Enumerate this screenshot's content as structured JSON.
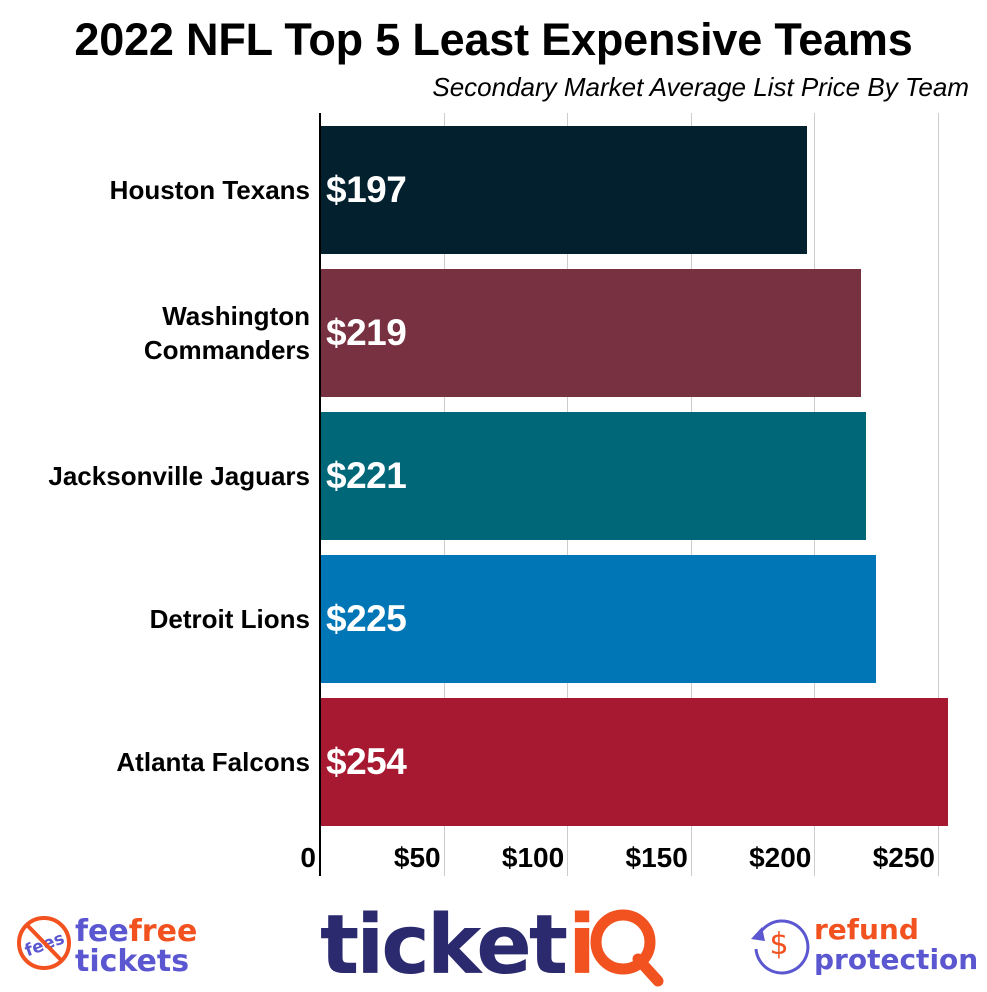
{
  "header": {
    "title": "2022 NFL Top 5 Least Expensive Teams",
    "subtitle": "Secondary Market Average List Price By Team"
  },
  "chart_data": {
    "type": "bar",
    "orientation": "horizontal",
    "title": "2022 NFL Top 5 Least Expensive Teams",
    "subtitle": "Secondary Market Average List Price By Team",
    "xlabel": "",
    "ylabel": "",
    "categories": [
      "Houston Texans",
      "Washington Commanders",
      "Jacksonville Jaguars",
      "Detroit Lions",
      "Atlanta Falcons"
    ],
    "values": [
      197,
      219,
      221,
      225,
      254
    ],
    "value_labels": [
      "$197",
      "$219",
      "$221",
      "$225",
      "$254"
    ],
    "colors": [
      "#03202f",
      "#773141",
      "#006778",
      "#0076b6",
      "#a71930"
    ],
    "xlim": [
      0,
      260
    ],
    "xticks": [
      0,
      50,
      100,
      150,
      200,
      250
    ],
    "xtick_labels": [
      "0",
      "$50",
      "$100",
      "$150",
      "$200",
      "$250"
    ],
    "grid": "vertical",
    "legend": "none"
  },
  "chart": {
    "bars": [
      {
        "label_lines": [
          "Houston Texans"
        ],
        "value": 197,
        "value_label": "$197",
        "color": "#03202f"
      },
      {
        "label_lines": [
          "Washington",
          "Commanders"
        ],
        "value": 219,
        "value_label": "$219",
        "color": "#773141"
      },
      {
        "label_lines": [
          "Jacksonville Jaguars"
        ],
        "value": 221,
        "value_label": "$221",
        "color": "#006778"
      },
      {
        "label_lines": [
          "Detroit Lions"
        ],
        "value": 225,
        "value_label": "$225",
        "color": "#0076b6"
      },
      {
        "label_lines": [
          "Atlanta Falcons"
        ],
        "value": 254,
        "value_label": "$254",
        "color": "#a71930"
      }
    ],
    "ticks": [
      {
        "value": 0,
        "label": "0"
      },
      {
        "value": 50,
        "label": "$50"
      },
      {
        "value": 100,
        "label": "$100"
      },
      {
        "value": 150,
        "label": "$150"
      },
      {
        "value": 200,
        "label": "$200"
      },
      {
        "value": 250,
        "label": "$250"
      }
    ]
  },
  "footer": {
    "feefree": {
      "icon_text": "fees",
      "word1": "fee",
      "word2": "free",
      "word3": "tickets"
    },
    "ticketiq": {
      "word1": "ticket",
      "word2": "iQ"
    },
    "refund": {
      "word1": "refund",
      "word2": "protection",
      "icon_text": "$"
    },
    "colors": {
      "purple": "#5b57d1",
      "orange": "#f2521f",
      "navy": "#2b2a6e"
    }
  }
}
